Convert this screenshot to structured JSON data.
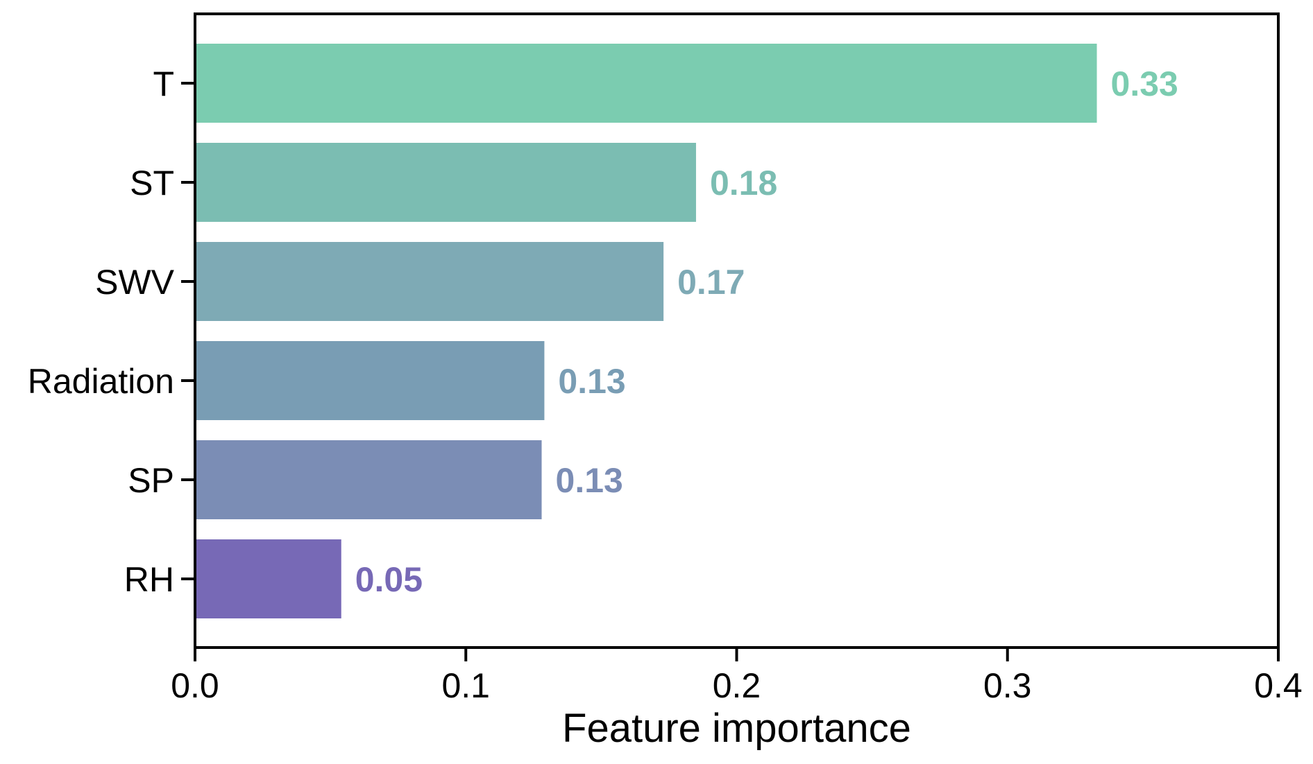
{
  "chart_data": {
    "type": "bar",
    "orientation": "horizontal",
    "categories": [
      "T",
      "ST",
      "SWV",
      "Radiation",
      "SP",
      "RH"
    ],
    "values": [
      0.333,
      0.185,
      0.173,
      0.129,
      0.128,
      0.054
    ],
    "value_labels": [
      "0.33",
      "0.18",
      "0.17",
      "0.13",
      "0.13",
      "0.05"
    ],
    "colors": [
      "#7bccb0",
      "#7bbdb2",
      "#7eaab5",
      "#799db4",
      "#7b8db5",
      "#7769b6"
    ],
    "xlabel": "Feature importance",
    "ylabel": "",
    "title": "",
    "xlim": [
      0.0,
      0.4
    ],
    "xticks": [
      0.0,
      0.1,
      0.2,
      0.3,
      0.4
    ],
    "xtick_labels": [
      "0.0",
      "0.1",
      "0.2",
      "0.3",
      "0.4"
    ],
    "grid": false,
    "legend": "none"
  }
}
